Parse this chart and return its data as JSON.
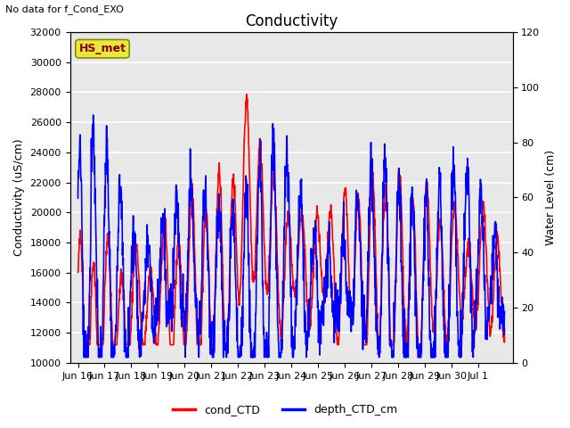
{
  "title": "Conductivity",
  "top_left_text": "No data for f_Cond_EXO",
  "ylabel_left": "Conductivity (uS/cm)",
  "ylabel_right": "Water Level (cm)",
  "ylim_left": [
    10000,
    32000
  ],
  "ylim_right": [
    0,
    120
  ],
  "yticks_left": [
    10000,
    12000,
    14000,
    16000,
    18000,
    20000,
    22000,
    24000,
    26000,
    28000,
    30000,
    32000
  ],
  "yticks_right": [
    0,
    20,
    40,
    60,
    80,
    100,
    120
  ],
  "xtick_labels": [
    "Jun 16",
    "Jun 17",
    "Jun 18",
    "Jun 19",
    "Jun 20",
    "Jun 21",
    "Jun 22",
    "Jun 23",
    "Jun 24",
    "Jun 25",
    "Jun 26",
    "Jun 27",
    "Jun 28",
    "Jun 29",
    "Jun 30",
    "Jul 1"
  ],
  "legend_labels": [
    "cond_CTD",
    "depth_CTD_cm"
  ],
  "legend_colors": [
    "red",
    "blue"
  ],
  "box_label": "HS_met",
  "box_facecolor": "#e8e840",
  "box_textcolor": "#880000",
  "background_color": "#e8e8e8",
  "grid_color": "white",
  "line_color_red": "red",
  "line_color_blue": "blue",
  "line_width": 1.2
}
